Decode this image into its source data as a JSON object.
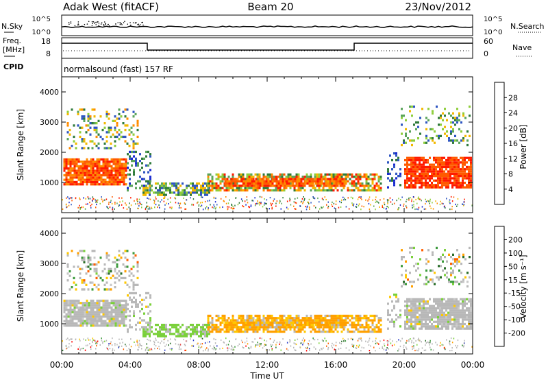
{
  "header": {
    "station": "Adak West (fitACF)",
    "beam": "Beam 20",
    "date": "23/Nov/2012"
  },
  "panels": {
    "nsky": {
      "left_label": "N.Sky",
      "right_label": "N.Search",
      "left_ticks": [
        "10^5",
        "10^0"
      ],
      "right_ticks": [
        "10^5",
        "10^0"
      ]
    },
    "freq": {
      "left_label_line1": "Freq.",
      "left_label_line2": "[MHz]",
      "right_label": "Nave",
      "left_ticks": [
        "18",
        "8"
      ],
      "right_ticks": [
        "60",
        "0"
      ]
    },
    "cpid": {
      "label": "CPID",
      "text": "normalsound (fast) 157 RF"
    }
  },
  "colors": {
    "power_scale": [
      "#1a2bd0",
      "#2f56c2",
      "#2f7a3a",
      "#5aa45a",
      "#8fce3c",
      "#f2b800",
      "#ff8c00",
      "#ff5a00",
      "#ff1a00"
    ],
    "velocity_scale": [
      "#ff0000",
      "#ff6000",
      "#ffa000",
      "#ffc800",
      "#c8c8c8",
      "#7ad03a",
      "#3c9a3c",
      "#2a6e2a",
      "#2a3cc8"
    ],
    "ground_scatter": "#b8b8b8"
  },
  "chart_data": [
    {
      "type": "heatmap",
      "ylabel": "Slant Range [km]",
      "xlabel": "",
      "x_ticks": [],
      "y_ticks": [
        "1000",
        "2000",
        "3000",
        "4000"
      ],
      "ylim": [
        0,
        4500
      ],
      "colorbar": {
        "label": "Power [dB]",
        "ticks": [
          "4",
          "8",
          "12",
          "16",
          "20",
          "24",
          "28"
        ],
        "range": [
          0,
          30
        ]
      }
    },
    {
      "type": "heatmap",
      "ylabel": "Slant Range [km]",
      "xlabel": "Time UT",
      "x_ticks": [
        "00:00",
        "04:00",
        "08:00",
        "12:00",
        "16:00",
        "20:00",
        "00:00"
      ],
      "xlim": [
        0,
        24
      ],
      "y_ticks": [
        "1000",
        "2000",
        "3000",
        "4000"
      ],
      "ylim": [
        0,
        4500
      ],
      "colorbar": {
        "label": "Velocity [m s⁻¹]",
        "ticks": [
          "200",
          "100",
          "50",
          "15",
          "-15",
          "-50",
          "-100",
          "-200"
        ]
      }
    }
  ]
}
